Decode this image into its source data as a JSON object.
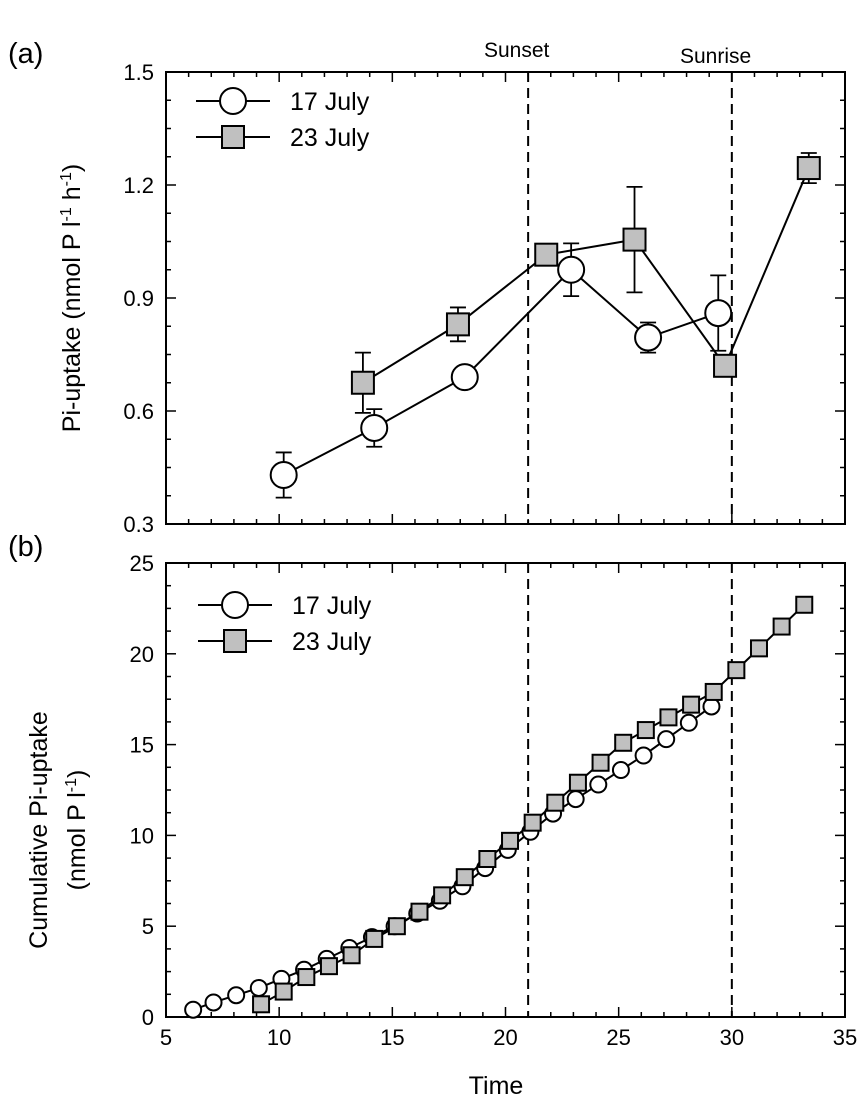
{
  "x_axis": {
    "label": "Time",
    "ticks": [
      "5",
      "10",
      "15",
      "20",
      "25",
      "30",
      "35"
    ]
  },
  "annotations": {
    "sunset": "Sunset",
    "sunrise": "Sunrise"
  },
  "colors": {
    "circle_fill": "#ffffff",
    "square_fill": "#c0c0c0",
    "line": "#000000"
  },
  "chart_data": [
    {
      "panel": "(a)",
      "type": "line",
      "xlabel": "Time",
      "ylabel": "Pi-uptake (nmol P l-1 h-1)",
      "ylabel_display": {
        "main": "Pi-uptake (nmol P l",
        "sup1": "-1",
        "mid": " h",
        "sup2": "-1",
        "end": ")"
      },
      "xlim": [
        5,
        35
      ],
      "ylim": [
        0.3,
        1.5
      ],
      "yticks": [
        "0.3",
        "0.6",
        "0.9",
        "1.2",
        "1.5"
      ],
      "vertical_lines": [
        {
          "x": 21,
          "label": "Sunset"
        },
        {
          "x": 30,
          "label": "Sunrise"
        }
      ],
      "legend_position": "top-left",
      "series": [
        {
          "name": "17 July",
          "marker": "circle",
          "x": [
            10.2,
            14.2,
            18.2,
            22.9,
            26.3,
            29.4
          ],
          "y": [
            0.43,
            0.555,
            0.69,
            0.975,
            0.795,
            0.86
          ],
          "err": [
            0.06,
            0.05,
            0.0,
            0.07,
            0.04,
            0.1
          ]
        },
        {
          "name": "23 July",
          "marker": "square",
          "x": [
            13.7,
            17.9,
            21.8,
            25.7,
            29.7,
            33.4
          ],
          "y": [
            0.675,
            0.83,
            1.015,
            1.055,
            0.72,
            1.245
          ],
          "err": [
            0.08,
            0.045,
            0.0,
            0.14,
            0.0,
            0.04
          ]
        }
      ]
    },
    {
      "panel": "(b)",
      "type": "line",
      "xlabel": "Time",
      "ylabel_line1": "Cumulative Pi-uptake",
      "ylabel_line2": {
        "main": "(nmol P l",
        "sup": "-1",
        "end": ")"
      },
      "xlim": [
        5,
        35
      ],
      "ylim": [
        0,
        25
      ],
      "yticks": [
        "0",
        "5",
        "10",
        "15",
        "20",
        "25"
      ],
      "vertical_lines": [
        {
          "x": 21,
          "label": "Sunset"
        },
        {
          "x": 30,
          "label": "Sunrise"
        }
      ],
      "legend_position": "top-left",
      "series": [
        {
          "name": "17 July",
          "marker": "circle",
          "x": [
            6.2,
            7.1,
            8.1,
            9.1,
            10.1,
            11.1,
            12.1,
            13.1,
            14.1,
            15.1,
            16.1,
            17.1,
            18.1,
            19.1,
            20.1,
            21.1,
            22.1,
            23.1,
            24.1,
            25.1,
            26.1,
            27.1,
            28.1,
            29.1
          ],
          "y": [
            0.4,
            0.8,
            1.2,
            1.6,
            2.1,
            2.6,
            3.2,
            3.8,
            4.4,
            5.0,
            5.7,
            6.4,
            7.2,
            8.2,
            9.2,
            10.2,
            11.2,
            12.0,
            12.8,
            13.6,
            14.4,
            15.3,
            16.2,
            17.1
          ]
        },
        {
          "name": "23 July",
          "marker": "square",
          "x": [
            9.2,
            10.2,
            11.2,
            12.2,
            13.2,
            14.2,
            15.2,
            16.2,
            17.2,
            18.2,
            19.2,
            20.2,
            21.2,
            22.2,
            23.2,
            24.2,
            25.2,
            26.2,
            27.2,
            28.2,
            29.2,
            30.2,
            31.2,
            32.2,
            33.2
          ],
          "y": [
            0.7,
            1.4,
            2.2,
            2.8,
            3.4,
            4.3,
            5.0,
            5.8,
            6.7,
            7.7,
            8.7,
            9.7,
            10.7,
            11.8,
            12.9,
            14.0,
            15.1,
            15.8,
            16.5,
            17.2,
            17.9,
            19.1,
            20.3,
            21.5,
            22.7
          ]
        }
      ]
    }
  ]
}
